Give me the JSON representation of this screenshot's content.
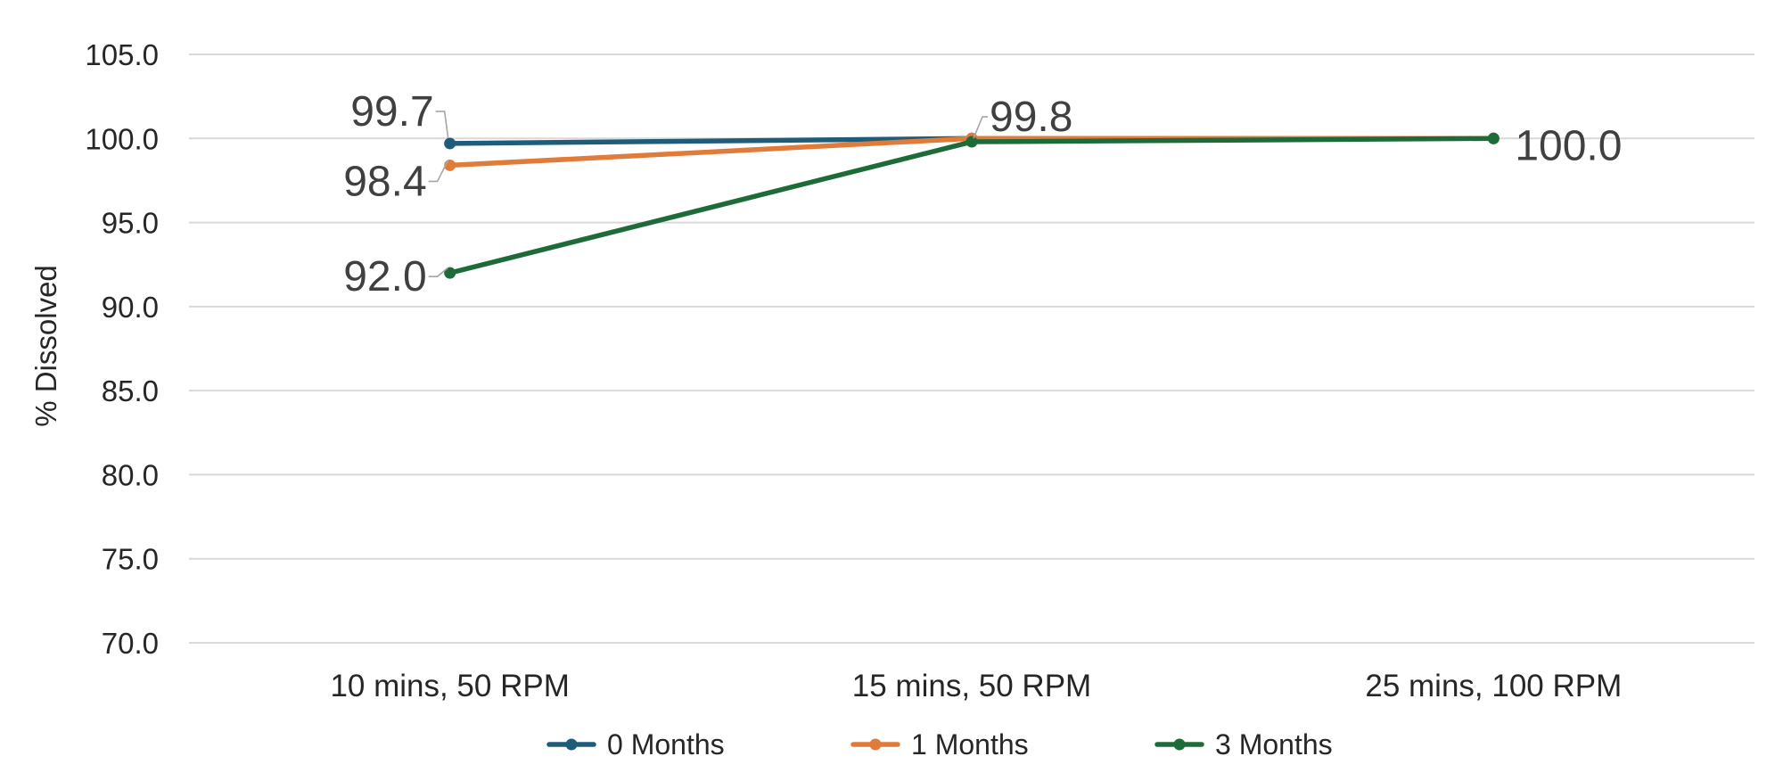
{
  "chart_data": {
    "type": "line",
    "title": "",
    "xlabel": "",
    "ylabel": "% Dissolved",
    "categories": [
      "10 mins, 50 RPM",
      "15 mins, 50 RPM",
      "25 mins, 100 RPM"
    ],
    "ylim": [
      70,
      105
    ],
    "ytick_step": 5,
    "yticks": [
      "70.0",
      "75.0",
      "80.0",
      "85.0",
      "90.0",
      "95.0",
      "100.0",
      "105.0"
    ],
    "grid": true,
    "legend_position": "bottom",
    "series": [
      {
        "name": "0 Months",
        "color": "#1f5c7a",
        "values": [
          99.7,
          100.0,
          100.0
        ]
      },
      {
        "name": "1 Months",
        "color": "#e07b39",
        "values": [
          98.4,
          100.0,
          100.0
        ]
      },
      {
        "name": "3 Months",
        "color": "#1e6b3a",
        "values": [
          92.0,
          99.8,
          100.0
        ]
      }
    ],
    "data_labels": [
      {
        "text": "99.7",
        "series": 0,
        "point": 0
      },
      {
        "text": "98.4",
        "series": 1,
        "point": 0
      },
      {
        "text": "92.0",
        "series": 2,
        "point": 0
      },
      {
        "text": "99.8",
        "series": 2,
        "point": 1
      },
      {
        "text": "100.0",
        "series": 2,
        "point": 2
      }
    ]
  }
}
